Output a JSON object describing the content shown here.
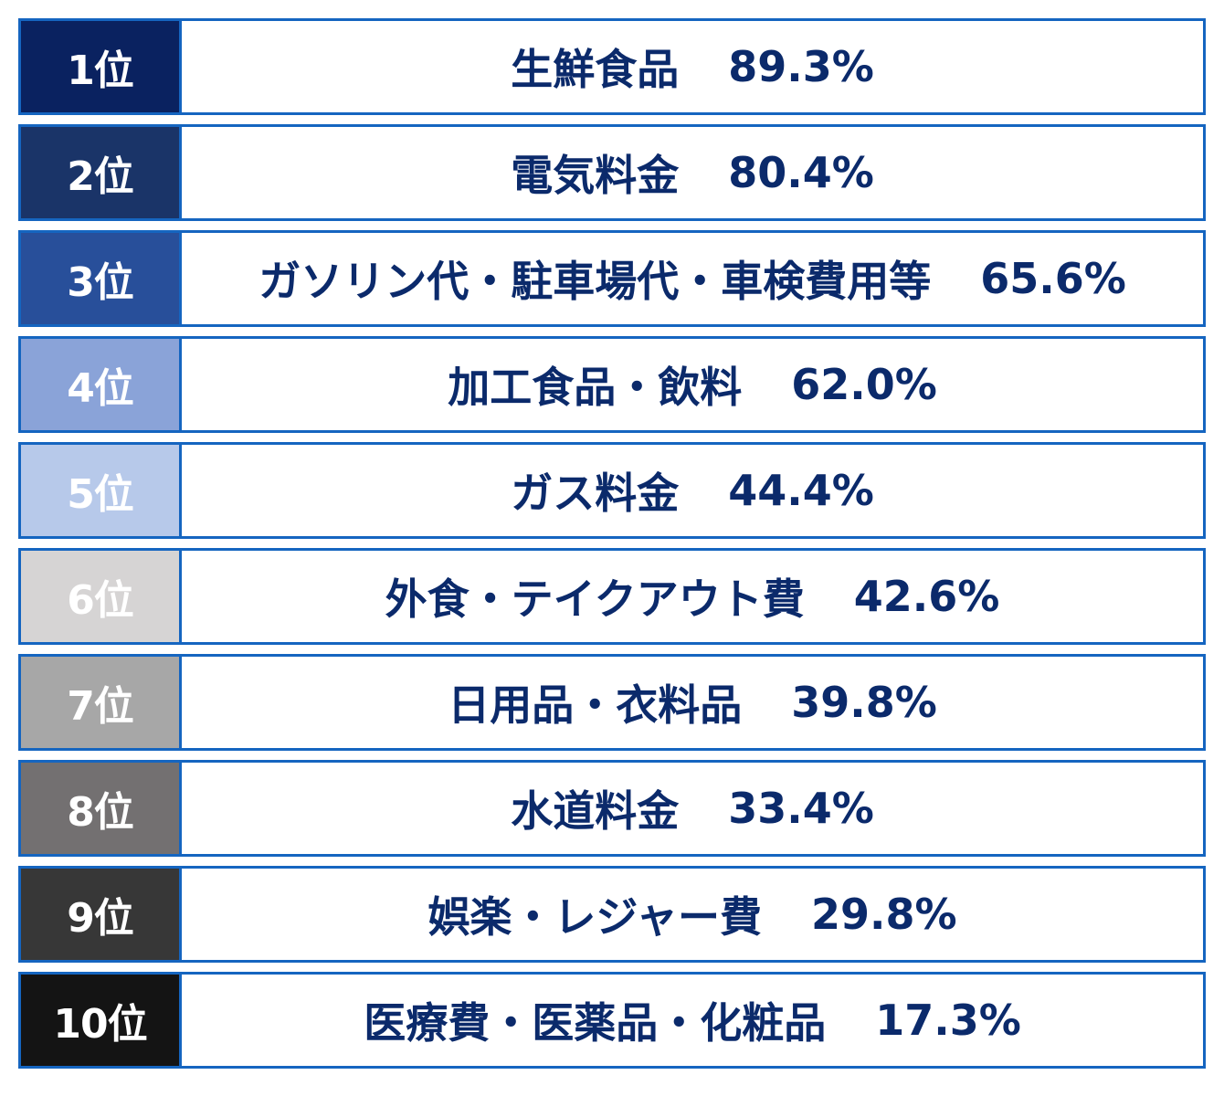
{
  "ranking": [
    {
      "rank": "1位",
      "label": "生鮮食品",
      "value": "89.3%",
      "color": "#0a2260"
    },
    {
      "rank": "2位",
      "label": "電気料金",
      "value": "80.4%",
      "color": "#1a3468"
    },
    {
      "rank": "3位",
      "label": "ガソリン代・駐車場代・車検費用等",
      "value": "65.6%",
      "color": "#284f9a"
    },
    {
      "rank": "4位",
      "label": "加工食品・飲料",
      "value": "62.0%",
      "color": "#8aa3d8"
    },
    {
      "rank": "5位",
      "label": "ガス料金",
      "value": "44.4%",
      "color": "#b7c9ea"
    },
    {
      "rank": "6位",
      "label": "外食・テイクアウト費",
      "value": "42.6%",
      "color": "#d6d4d4"
    },
    {
      "rank": "7位",
      "label": "日用品・衣料品",
      "value": "39.8%",
      "color": "#a7a7a7"
    },
    {
      "rank": "8位",
      "label": "水道料金",
      "value": "33.4%",
      "color": "#737071"
    },
    {
      "rank": "9位",
      "label": "娯楽・レジャー費",
      "value": "29.8%",
      "color": "#373737"
    },
    {
      "rank": "10位",
      "label": "医療費・医薬品・化粧品",
      "value": "17.3%",
      "color": "#141414"
    }
  ]
}
